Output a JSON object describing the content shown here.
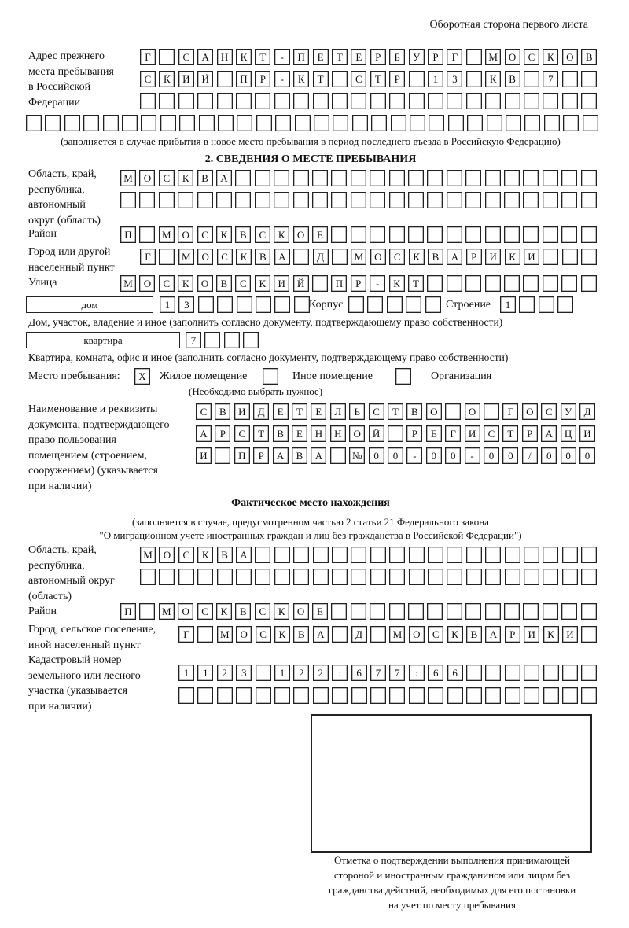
{
  "header": "Оборотная сторона первого листа",
  "prev_address": {
    "label": [
      "Адрес прежнего",
      "места пребывания",
      "в Российской",
      "Федерации"
    ],
    "rows": [
      [
        "Г",
        "",
        "С",
        "А",
        "Н",
        "К",
        "Т",
        "-",
        "П",
        "Е",
        "Т",
        "Е",
        "Р",
        "Б",
        "У",
        "Р",
        "Г",
        "",
        "М",
        "О",
        "С",
        "К",
        "О",
        "В"
      ],
      [
        "С",
        "К",
        "И",
        "Й",
        "",
        "П",
        "Р",
        "-",
        "К",
        "Т",
        "",
        "С",
        "Т",
        "Р",
        "",
        "1",
        "3",
        "",
        "К",
        "В",
        "",
        "7",
        "",
        ""
      ],
      [
        "",
        "",
        "",
        "",
        "",
        "",
        "",
        "",
        "",
        "",
        "",
        "",
        "",
        "",
        "",
        "",
        "",
        "",
        "",
        "",
        "",
        "",
        "",
        ""
      ],
      [
        "",
        "",
        "",
        "",
        "",
        "",
        "",
        "",
        "",
        "",
        "",
        "",
        "",
        "",
        "",
        "",
        "",
        "",
        "",
        "",
        "",
        "",
        "",
        "",
        "",
        "",
        "",
        "",
        "",
        ""
      ]
    ],
    "note": "(заполняется в случае прибытия в новое место пребывания в период последнего въезда в Российскую Федерацию)"
  },
  "section2": {
    "title": "2. СВЕДЕНИЯ О МЕСТЕ ПРЕБЫВАНИЯ",
    "region_label": [
      "Область, край,",
      "республика,",
      "автономный",
      "округ (область)"
    ],
    "region_rows": [
      [
        "М",
        "О",
        "С",
        "К",
        "В",
        "А",
        "",
        "",
        "",
        "",
        "",
        "",
        "",
        "",
        "",
        "",
        "",
        "",
        "",
        "",
        "",
        "",
        "",
        "",
        ""
      ],
      [
        "",
        "",
        "",
        "",
        "",
        "",
        "",
        "",
        "",
        "",
        "",
        "",
        "",
        "",
        "",
        "",
        "",
        "",
        "",
        "",
        "",
        "",
        "",
        "",
        ""
      ]
    ],
    "district_label": "Район",
    "district": [
      "П",
      "",
      "М",
      "О",
      "С",
      "К",
      "В",
      "С",
      "К",
      "О",
      "Е",
      "",
      "",
      "",
      "",
      "",
      "",
      "",
      "",
      "",
      "",
      "",
      "",
      "",
      ""
    ],
    "city_label": [
      "Город или другой",
      "населенный пункт"
    ],
    "city": [
      "Г",
      "",
      "М",
      "О",
      "С",
      "К",
      "В",
      "А",
      "",
      "Д",
      "",
      "М",
      "О",
      "С",
      "К",
      "В",
      "А",
      "Р",
      "И",
      "К",
      "И",
      "",
      "",
      ""
    ],
    "street_label": "Улица",
    "street": [
      "М",
      "О",
      "С",
      "К",
      "О",
      "В",
      "С",
      "К",
      "И",
      "Й",
      "",
      "П",
      "Р",
      "-",
      "К",
      "Т",
      "",
      "",
      "",
      "",
      "",
      "",
      "",
      "",
      ""
    ],
    "house_type": "дом",
    "house": [
      "1",
      "3",
      "",
      "",
      "",
      "",
      "",
      ""
    ],
    "korpus_label": "Корпус",
    "korpus": [
      "",
      "",
      "",
      "",
      ""
    ],
    "building_label": "Строение",
    "building": [
      "1",
      "",
      "",
      ""
    ],
    "house_note": "Дом, участок, владение и иное (заполнить согласно документу, подтверждающему право собственности)",
    "flat_type": "квартира",
    "flat": [
      "7",
      "",
      "",
      ""
    ],
    "flat_note": "Квартира, комната, офис и иное (заполнить согласно документу, подтверждающему право собственности)",
    "place_label": "Место пребывания:",
    "place_options": [
      {
        "label": "Жилое помещение",
        "mark": "X"
      },
      {
        "label": "Иное помещение",
        "mark": ""
      },
      {
        "label": "Организация",
        "mark": ""
      }
    ],
    "place_note": "(Необходимо выбрать нужное)",
    "doc_label": [
      "Наименование и реквизиты",
      "документа, подтверждающего",
      "право пользования",
      "помещением (строением,",
      "сооружением) (указывается",
      "при наличии)"
    ],
    "doc_rows": [
      [
        "С",
        "В",
        "И",
        "Д",
        "Е",
        "Т",
        "Е",
        "Л",
        "Ь",
        "С",
        "Т",
        "В",
        "О",
        "",
        "О",
        "",
        "Г",
        "О",
        "С",
        "У",
        "Д"
      ],
      [
        "А",
        "Р",
        "С",
        "Т",
        "В",
        "Е",
        "Н",
        "Н",
        "О",
        "Й",
        "",
        "Р",
        "Е",
        "Г",
        "И",
        "С",
        "Т",
        "Р",
        "А",
        "Ц",
        "И"
      ],
      [
        "И",
        "",
        "П",
        "Р",
        "А",
        "В",
        "А",
        "",
        "№",
        "0",
        "0",
        "-",
        "0",
        "0",
        "-",
        "0",
        "0",
        "/",
        "0",
        "0",
        "0"
      ]
    ]
  },
  "actual": {
    "title": "Фактическое место нахождения",
    "note": [
      "(заполняется в случае, предусмотренном частью 2 статьи 21 Федерального закона",
      "\"О миграционном учете иностранных граждан и лиц без гражданства в Российской Федерации\")"
    ],
    "region_label": [
      "Область, край,",
      "республика,",
      "автономный округ",
      "(область)"
    ],
    "region_rows": [
      [
        "М",
        "О",
        "С",
        "К",
        "В",
        "А",
        "",
        "",
        "",
        "",
        "",
        "",
        "",
        "",
        "",
        "",
        "",
        "",
        "",
        "",
        "",
        "",
        "",
        ""
      ],
      [
        "",
        "",
        "",
        "",
        "",
        "",
        "",
        "",
        "",
        "",
        "",
        "",
        "",
        "",
        "",
        "",
        "",
        "",
        "",
        "",
        "",
        "",
        "",
        ""
      ]
    ],
    "district_label": "Район",
    "district": [
      "П",
      "",
      "М",
      "О",
      "С",
      "К",
      "В",
      "С",
      "К",
      "О",
      "Е",
      "",
      "",
      "",
      "",
      "",
      "",
      "",
      "",
      "",
      "",
      "",
      "",
      "",
      ""
    ],
    "city_label": [
      "Город, сельское поселение,",
      "иной населенный пункт"
    ],
    "city": [
      "Г",
      "",
      "М",
      "О",
      "С",
      "К",
      "В",
      "А",
      "",
      "Д",
      "",
      "М",
      "О",
      "С",
      "К",
      "В",
      "А",
      "Р",
      "И",
      "К",
      "И",
      ""
    ],
    "cadastre_label": [
      "Кадастровый номер",
      "земельного или лесного",
      "участка (указывается",
      "при наличии)"
    ],
    "cadastre_rows": [
      [
        "1",
        "1",
        "2",
        "3",
        ":",
        "1",
        "2",
        "2",
        ":",
        "6",
        "7",
        "7",
        ":",
        "6",
        "6",
        "",
        "",
        "",
        "",
        "",
        "",
        ""
      ],
      [
        "",
        "",
        "",
        "",
        "",
        "",
        "",
        "",
        "",
        "",
        "",
        "",
        "",
        "",
        "",
        "",
        "",
        "",
        "",
        "",
        "",
        ""
      ]
    ]
  },
  "stamp_caption": [
    "Отметка о подтверждении выполнения принимающей",
    "стороной и иностранным гражданином или лицом без",
    "гражданства действий, необходимых для его постановки",
    "на учет по месту пребывания"
  ]
}
